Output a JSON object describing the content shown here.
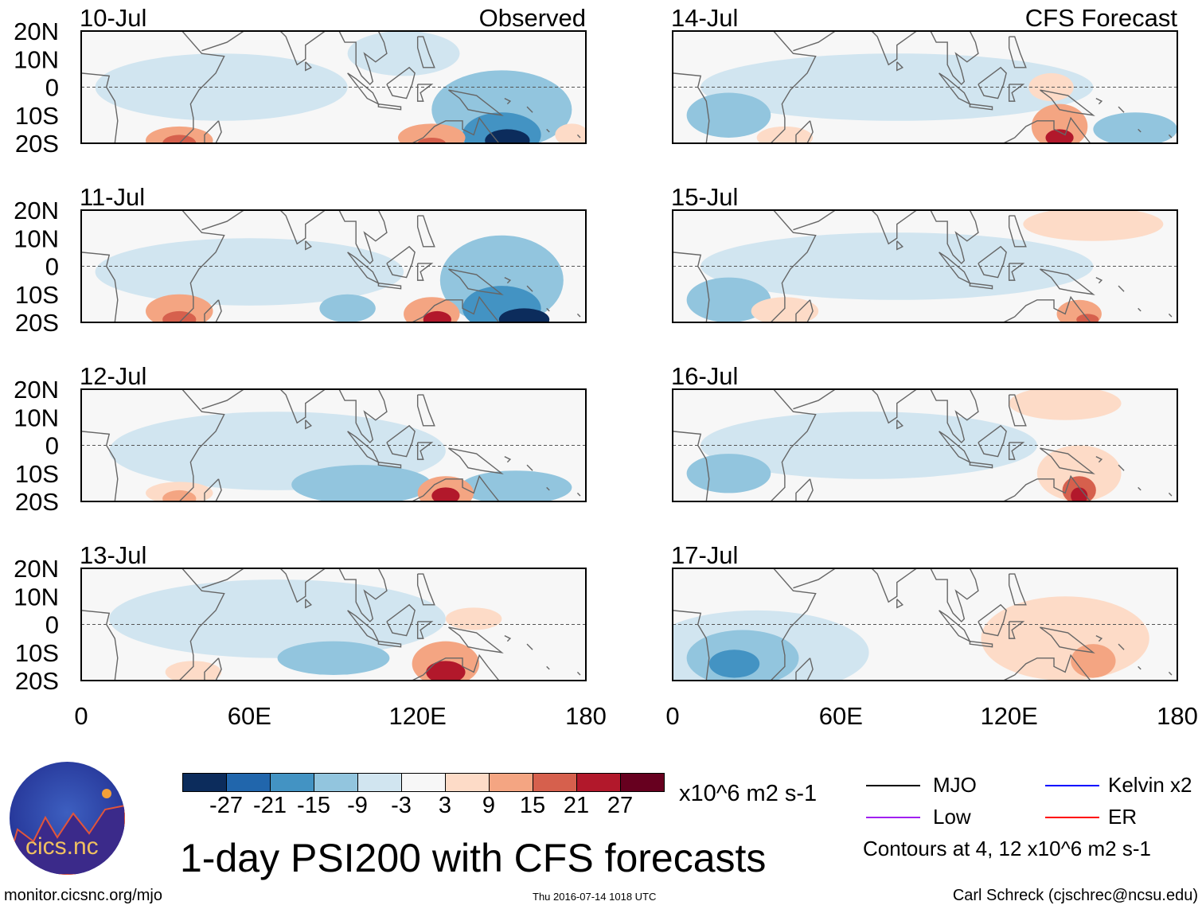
{
  "title": "1-day PSI200 with CFS forecasts",
  "panel_headers": {
    "observed": "Observed",
    "forecast": "CFS Forecast"
  },
  "lat_labels": [
    "20N",
    "10N",
    "0",
    "10S",
    "20S"
  ],
  "lon_labels": [
    "0",
    "60E",
    "120E",
    "180"
  ],
  "lon_values": [
    0,
    60,
    120,
    180
  ],
  "colorbar": {
    "unit": "x10^6 m2 s-1",
    "ticks": [
      "-27",
      "-21",
      "-15",
      "-9",
      "-3",
      "3",
      "9",
      "15",
      "21",
      "27"
    ],
    "tick_values": [
      -27,
      -21,
      -15,
      -9,
      -3,
      3,
      9,
      15,
      21,
      27
    ],
    "colors": [
      "#0c2c5c",
      "#2166ac",
      "#4393c3",
      "#92c5de",
      "#d1e5f0",
      "#f7f7f7",
      "#fddbc7",
      "#f4a582",
      "#d6604d",
      "#b2182b",
      "#67001f"
    ]
  },
  "legend": {
    "items": [
      {
        "label": "MJO",
        "color": "#000000"
      },
      {
        "label": "Kelvin x2",
        "color": "#0000ff"
      },
      {
        "label": "Low",
        "color": "#a020f0"
      },
      {
        "label": "ER",
        "color": "#ff0000"
      }
    ],
    "note": "Contours at 4, 12 x10^6 m2 s-1"
  },
  "footer": {
    "url": "monitor.cicsnc.org/mjo",
    "timestamp": "Thu 2016-07-14 1018 UTC",
    "author": "Carl Schreck (cjschrec@ncsu.edu)",
    "logo_text": "cics.nc",
    "logo_ring": "Cooperative Institute for Climate and Satellites"
  },
  "panels": [
    {
      "date": "10-Jul",
      "column": "observed",
      "features": [
        [
          50,
          0,
          -3,
          45,
          12
        ],
        [
          150,
          -8,
          -9,
          25,
          14
        ],
        [
          150,
          -17,
          -15,
          14,
          8
        ],
        [
          152,
          -19,
          -27,
          8,
          4
        ],
        [
          115,
          12,
          -3,
          20,
          8
        ],
        [
          35,
          -19,
          15,
          12,
          5
        ],
        [
          35,
          -20,
          21,
          6,
          3
        ],
        [
          125,
          -18,
          15,
          12,
          5
        ],
        [
          125,
          -20,
          21,
          5,
          2
        ],
        [
          175,
          -17,
          9,
          6,
          4
        ]
      ]
    },
    {
      "date": "11-Jul",
      "column": "observed",
      "features": [
        [
          60,
          -2,
          -3,
          55,
          12
        ],
        [
          150,
          -5,
          -9,
          22,
          16
        ],
        [
          150,
          -15,
          -15,
          14,
          8
        ],
        [
          158,
          -19,
          -27,
          9,
          4
        ],
        [
          35,
          -16,
          15,
          12,
          6
        ],
        [
          35,
          -19,
          21,
          6,
          3
        ],
        [
          125,
          -17,
          15,
          10,
          6
        ],
        [
          127,
          -19,
          27,
          5,
          3
        ],
        [
          95,
          -15,
          -9,
          10,
          5
        ]
      ]
    },
    {
      "date": "12-Jul",
      "column": "observed",
      "features": [
        [
          70,
          -2,
          -3,
          60,
          14
        ],
        [
          100,
          -14,
          -9,
          25,
          7
        ],
        [
          155,
          -15,
          -9,
          20,
          6
        ],
        [
          130,
          -17,
          15,
          10,
          6
        ],
        [
          130,
          -18,
          27,
          5,
          3
        ],
        [
          35,
          -17,
          9,
          12,
          4
        ],
        [
          35,
          -19,
          15,
          6,
          3
        ]
      ]
    },
    {
      "date": "13-Jul",
      "column": "observed",
      "features": [
        [
          70,
          2,
          -3,
          60,
          14
        ],
        [
          90,
          -12,
          -9,
          20,
          6
        ],
        [
          130,
          -14,
          15,
          12,
          8
        ],
        [
          130,
          -17,
          27,
          7,
          4
        ],
        [
          40,
          -17,
          9,
          10,
          4
        ],
        [
          140,
          2,
          9,
          10,
          4
        ]
      ]
    },
    {
      "date": "14-Jul",
      "column": "forecast",
      "features": [
        [
          80,
          0,
          -3,
          70,
          12
        ],
        [
          20,
          -10,
          -9,
          15,
          8
        ],
        [
          165,
          -15,
          -9,
          15,
          6
        ],
        [
          138,
          -14,
          15,
          10,
          8
        ],
        [
          138,
          -18,
          27,
          5,
          3
        ],
        [
          40,
          -18,
          9,
          10,
          4
        ],
        [
          135,
          0,
          9,
          8,
          5
        ]
      ]
    },
    {
      "date": "15-Jul",
      "column": "forecast",
      "features": [
        [
          80,
          0,
          -3,
          70,
          12
        ],
        [
          20,
          -12,
          -9,
          15,
          8
        ],
        [
          40,
          -16,
          9,
          12,
          5
        ],
        [
          145,
          -17,
          15,
          8,
          5
        ],
        [
          148,
          -19,
          21,
          4,
          2
        ],
        [
          150,
          15,
          9,
          25,
          6
        ]
      ]
    },
    {
      "date": "16-Jul",
      "column": "forecast",
      "features": [
        [
          70,
          0,
          -3,
          60,
          12
        ],
        [
          20,
          -10,
          -9,
          15,
          7
        ],
        [
          145,
          -10,
          9,
          15,
          10
        ],
        [
          145,
          -16,
          21,
          6,
          5
        ],
        [
          145,
          -18,
          27,
          3,
          3
        ],
        [
          140,
          15,
          9,
          20,
          6
        ]
      ]
    },
    {
      "date": "17-Jul",
      "column": "forecast",
      "features": [
        [
          30,
          -10,
          -3,
          40,
          15
        ],
        [
          25,
          -12,
          -9,
          20,
          10
        ],
        [
          22,
          -14,
          -15,
          9,
          5
        ],
        [
          140,
          -5,
          9,
          30,
          15
        ],
        [
          150,
          -13,
          15,
          8,
          6
        ]
      ]
    }
  ]
}
